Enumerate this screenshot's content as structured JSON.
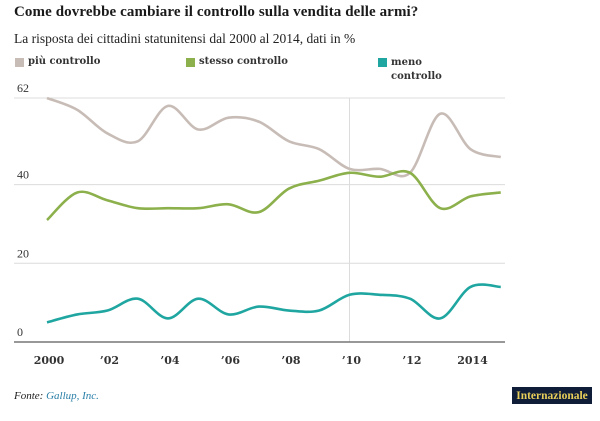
{
  "chart_data": {
    "type": "line",
    "title": "Come dovrebbe cambiare il controllo sulla vendita delle armi?",
    "subtitle": "La risposta dei cittadini statunitensi dal 2000 al 2014, dati in %",
    "x": [
      2000,
      2001,
      2002,
      2003,
      2004,
      2005,
      2006,
      2007,
      2008,
      2009,
      2010,
      2011,
      2012,
      2013,
      2014,
      2015
    ],
    "xticks": [
      {
        "value": 2000,
        "label": "2000"
      },
      {
        "value": 2002,
        "label": "’02"
      },
      {
        "value": 2004,
        "label": "’04"
      },
      {
        "value": 2006,
        "label": "’06"
      },
      {
        "value": 2008,
        "label": "’08"
      },
      {
        "value": 2010,
        "label": "’10"
      },
      {
        "value": 2012,
        "label": "’12"
      },
      {
        "value": 2014,
        "label": "2014"
      }
    ],
    "yticks": [
      {
        "value": 0,
        "label": "0"
      },
      {
        "value": 20,
        "label": "20"
      },
      {
        "value": 40,
        "label": "40"
      },
      {
        "value": 62,
        "label": "62"
      }
    ],
    "ylim": [
      0,
      62
    ],
    "xlim": [
      2000,
      2015
    ],
    "grid": true,
    "vertical_gridline_at": 2010,
    "legend_position": "top",
    "series": [
      {
        "name": "più controllo",
        "color": "#c8bcb7",
        "values": [
          62,
          59,
          53,
          51,
          60,
          54,
          57,
          56,
          51,
          49,
          44,
          44,
          43,
          58,
          49,
          47
        ]
      },
      {
        "name": "stesso controllo",
        "color": "#8cb04b",
        "values": [
          31,
          38,
          36,
          34,
          34,
          34,
          35,
          33,
          39,
          41,
          43,
          42,
          43,
          34,
          37,
          38
        ]
      },
      {
        "name": "meno controllo",
        "color": "#1fa6a1",
        "values": [
          5,
          7,
          8,
          11,
          6,
          11,
          7,
          9,
          8,
          8,
          12,
          12,
          11,
          6,
          14,
          14
        ]
      }
    ]
  },
  "legend": {
    "items": [
      {
        "label": "più controllo",
        "color": "#c8bcb7"
      },
      {
        "label": "stesso controllo",
        "color": "#8cb04b"
      },
      {
        "label_line1": "meno",
        "label_line2": "controllo",
        "color": "#1fa6a1"
      }
    ]
  },
  "footer": {
    "prefix": "Fonte: ",
    "source": "Gallup, Inc."
  },
  "brand": {
    "label": "Internazionale",
    "bg": "#0f1d38",
    "fg": "#e8cf5a"
  }
}
